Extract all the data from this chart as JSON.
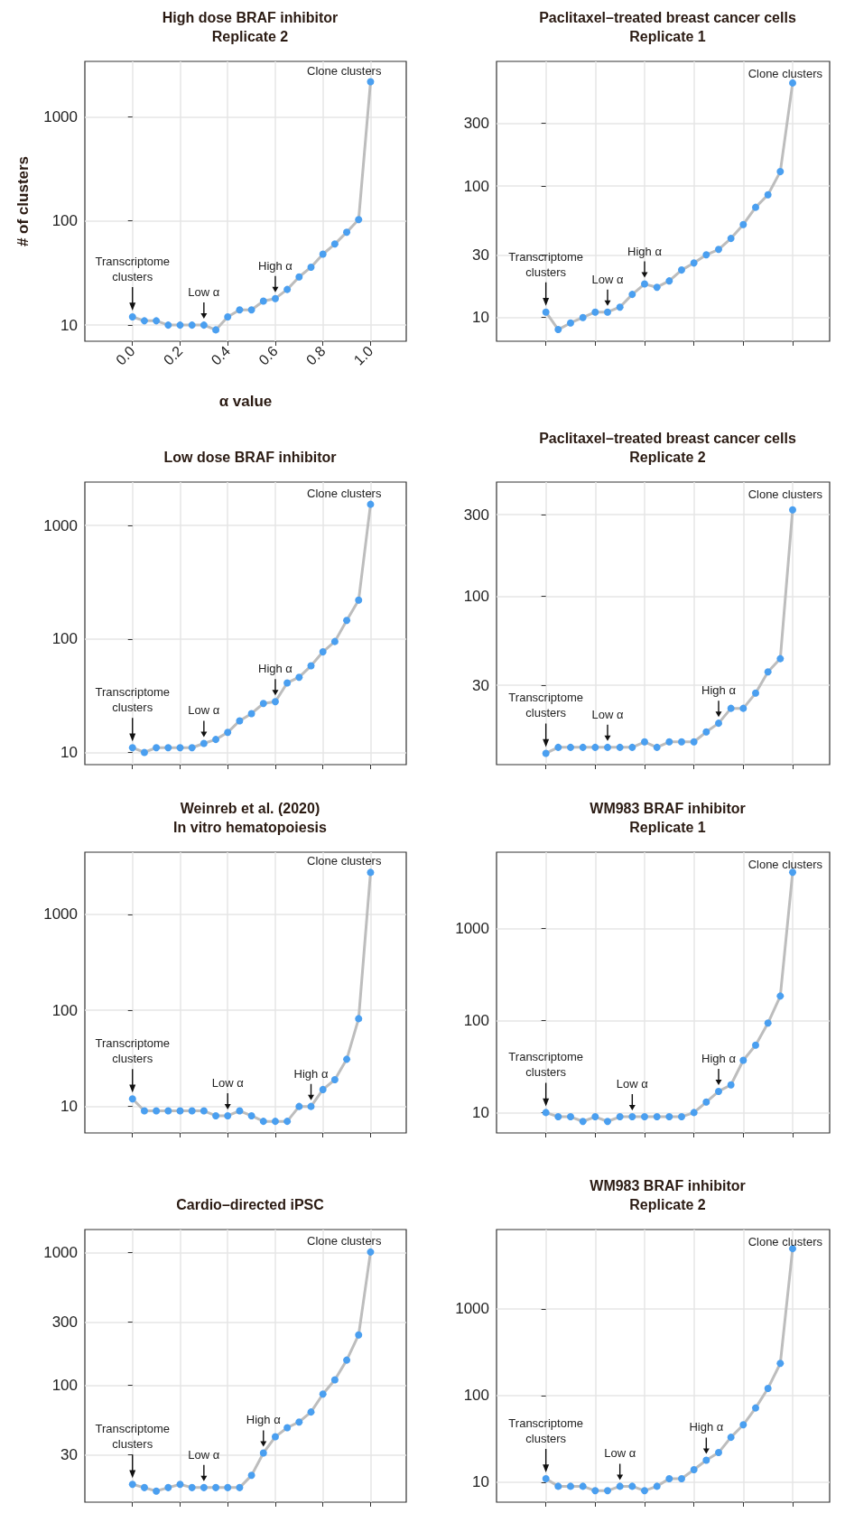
{
  "chart_data": [
    {
      "type": "line",
      "title": "High dose BRAF inhibitor\nReplicate 2",
      "xlabel": "α value",
      "ylabel": "# of clusters",
      "log": "y",
      "grid": true,
      "marker": "circle",
      "xlim": [
        -0.2,
        1.15
      ],
      "xticks": [
        {
          "value": 0,
          "label": "0.0"
        },
        {
          "value": 0.2,
          "label": "0.2"
        },
        {
          "value": 0.4,
          "label": "0.4"
        },
        {
          "value": 0.6,
          "label": "0.6"
        },
        {
          "value": 0.8,
          "label": "0.8"
        },
        {
          "value": 1,
          "label": "1.0"
        }
      ],
      "ylim": [
        7,
        3400
      ],
      "yticks": [
        10,
        100,
        1000
      ],
      "x": [
        0,
        0.05,
        0.1,
        0.15,
        0.2,
        0.25,
        0.3,
        0.35,
        0.4,
        0.45,
        0.5,
        0.55,
        0.6,
        0.65,
        0.7,
        0.75,
        0.8,
        0.85,
        0.9,
        0.95,
        1
      ],
      "series": [
        {
          "color": "#4a9ff0",
          "values": [
            12,
            11,
            11,
            10,
            10,
            10,
            10,
            9,
            12,
            14,
            14,
            17,
            18,
            22,
            29,
            36,
            48,
            60,
            78,
            103,
            2170
          ]
        }
      ],
      "annotations": [
        {
          "text": "Transcriptome\nclusters",
          "x": 0,
          "y": 12
        },
        {
          "text": "Low α",
          "x": 0.3,
          "y": 10
        },
        {
          "text": "High α",
          "x": 0.6,
          "y": 18
        },
        {
          "text": "Clone clusters",
          "x": 1,
          "y": 2170
        }
      ]
    },
    {
      "type": "line",
      "title": "Paclitaxel–treated breast cancer cells\nReplicate 1",
      "log": "y",
      "grid": true,
      "marker": "circle",
      "tick_labels": "y",
      "ylim": [
        6.6,
        890
      ],
      "yticks": [
        10,
        30,
        100,
        300
      ],
      "categories": [
        null,
        null,
        null,
        null,
        null,
        null,
        null,
        null,
        null,
        null,
        null,
        null,
        null,
        null,
        null,
        null,
        null,
        null,
        null,
        null,
        null
      ],
      "series": [
        {
          "color": "#4a9ff0",
          "values": [
            11,
            8.1,
            9.1,
            10,
            11,
            11,
            12,
            15,
            18,
            17,
            19,
            23,
            26,
            30,
            33,
            40,
            51,
            69,
            86,
            129,
            610
          ]
        }
      ],
      "annotations": [
        {
          "text": "Transcriptome\nclusters",
          "y": 11
        },
        {
          "text": "Low α",
          "y": 11
        },
        {
          "text": "High α",
          "y": 18
        },
        "Clone clusters"
      ]
    },
    {
      "type": "line",
      "title": "Low dose BRAF inhibitor",
      "log": "y",
      "grid": true,
      "marker": "circle",
      "tick_labels": "y",
      "xlim": [
        -0.2,
        1.15
      ],
      "xticks": [
        {
          "value": 0,
          "label": null
        },
        {
          "value": 0.2,
          "label": null
        },
        {
          "value": 0.4,
          "label": null
        },
        {
          "value": 0.6,
          "label": null
        },
        {
          "value": 0.8,
          "label": null
        },
        {
          "value": 1,
          "label": null
        }
      ],
      "ylim": [
        7.8,
        2420
      ],
      "yticks": [
        10,
        100,
        1000
      ],
      "x": [
        0,
        0.05,
        0.1,
        0.15,
        0.2,
        0.25,
        0.3,
        0.35,
        0.4,
        0.45,
        0.5,
        0.55,
        0.6,
        0.65,
        0.7,
        0.75,
        0.8,
        0.85,
        0.9,
        0.95,
        1
      ],
      "series": [
        {
          "color": "#4a9ff0",
          "values": [
            11,
            10,
            11,
            11,
            11,
            11,
            12,
            13,
            15,
            19,
            22,
            27,
            28,
            41,
            46,
            58,
            77,
            95,
            146,
            220,
            1540
          ]
        }
      ],
      "annotations": [
        {
          "text": "Transcriptome\nclusters",
          "x": 0,
          "y": 11
        },
        {
          "text": "Low α",
          "x": 0.3,
          "y": 12
        },
        {
          "text": "High α",
          "x": 0.6,
          "y": 28
        },
        {
          "text": "Clone clusters",
          "x": 1,
          "y": 1540
        }
      ]
    },
    {
      "type": "line",
      "title": "Paclitaxel–treated breast cancer cells\nReplicate 2",
      "log": "y",
      "grid": true,
      "marker": "circle",
      "tick_labels": "y",
      "ylim": [
        10.3,
        465
      ],
      "yticks": [
        30,
        100,
        300
      ],
      "categories": [
        null,
        null,
        null,
        null,
        null,
        null,
        null,
        null,
        null,
        null,
        null,
        null,
        null,
        null,
        null,
        null,
        null,
        null,
        null,
        null,
        null
      ],
      "series": [
        {
          "color": "#4a9ff0",
          "values": [
            12,
            13,
            13,
            13,
            13,
            13,
            13,
            13,
            14,
            13,
            14,
            14,
            14,
            16,
            18,
            22,
            22,
            27,
            36,
            43,
            320
          ]
        }
      ],
      "annotations": [
        {
          "text": "Transcriptome\nclusters",
          "y": 12
        },
        {
          "text": "Low α",
          "y": 13
        },
        {
          "text": "High α",
          "y": 18
        },
        "Clone clusters"
      ]
    },
    {
      "type": "line",
      "title": "Weinreb et al. (2020)\nIn vitro hematopoiesis",
      "log": "y",
      "grid": true,
      "marker": "circle",
      "tick_labels": "y",
      "xlim": [
        -0.2,
        1.15
      ],
      "xticks": [
        {
          "value": 0,
          "label": null
        },
        {
          "value": 0.2,
          "label": null
        },
        {
          "value": 0.4,
          "label": null
        },
        {
          "value": 0.6,
          "label": null
        },
        {
          "value": 0.8,
          "label": null
        },
        {
          "value": 1,
          "label": null
        }
      ],
      "ylim": [
        5.3,
        4430
      ],
      "yticks": [
        10,
        100,
        1000
      ],
      "x": [
        0,
        0.05,
        0.1,
        0.15,
        0.2,
        0.25,
        0.3,
        0.35,
        0.4,
        0.45,
        0.5,
        0.55,
        0.6,
        0.65,
        0.7,
        0.75,
        0.8,
        0.85,
        0.9,
        0.95,
        1
      ],
      "series": [
        {
          "color": "#4a9ff0",
          "values": [
            12,
            9,
            9,
            9,
            9,
            9,
            9,
            8,
            8,
            9,
            8,
            7,
            7,
            7,
            10,
            10,
            15,
            19,
            31,
            82,
            2730
          ]
        }
      ],
      "annotations": [
        {
          "text": "Transcriptome\nclusters",
          "x": 0,
          "y": 12
        },
        {
          "text": "Low α",
          "x": 0.4,
          "y": 8
        },
        {
          "text": "High α",
          "x": 0.75,
          "y": 10
        },
        {
          "text": "Clone clusters",
          "x": 1,
          "y": 2730
        }
      ]
    },
    {
      "type": "line",
      "title": "WM983 BRAF inhibitor\nReplicate 1",
      "log": "y",
      "grid": true,
      "marker": "circle",
      "tick_labels": "y",
      "ylim": [
        6,
        6790
      ],
      "yticks": [
        10,
        100,
        1000
      ],
      "categories": [
        null,
        null,
        null,
        null,
        null,
        null,
        null,
        null,
        null,
        null,
        null,
        null,
        null,
        null,
        null,
        null,
        null,
        null,
        null,
        null,
        null
      ],
      "series": [
        {
          "color": "#4a9ff0",
          "values": [
            10,
            9,
            9,
            8,
            9,
            8,
            9,
            9,
            9,
            9,
            9,
            9,
            10,
            13,
            17,
            20,
            37,
            54,
            94,
            185,
            4100
          ]
        }
      ],
      "annotations": [
        {
          "text": "Transcriptome\nclusters",
          "y": 10
        },
        {
          "text": "Low α",
          "y": 9
        },
        {
          "text": "High α",
          "y": 17
        },
        "Clone clusters"
      ]
    },
    {
      "type": "line",
      "title": "Cardio–directed iPSC",
      "log": "y",
      "grid": true,
      "marker": "circle",
      "tick_labels": "y",
      "xlim": [
        -0.2,
        1.15
      ],
      "xticks": [
        {
          "value": 0,
          "label": null
        },
        {
          "value": 0.2,
          "label": null
        },
        {
          "value": 0.4,
          "label": null
        },
        {
          "value": 0.6,
          "label": null
        },
        {
          "value": 0.8,
          "label": null
        },
        {
          "value": 1,
          "label": null
        }
      ],
      "ylim": [
        13.2,
        1490
      ],
      "yticks": [
        30,
        100,
        300,
        1000
      ],
      "x": [
        0,
        0.05,
        0.1,
        0.15,
        0.2,
        0.25,
        0.3,
        0.35,
        0.4,
        0.45,
        0.5,
        0.55,
        0.6,
        0.65,
        0.7,
        0.75,
        0.8,
        0.85,
        0.9,
        0.95,
        1
      ],
      "series": [
        {
          "color": "#4a9ff0",
          "values": [
            18,
            17,
            16,
            17,
            18,
            17,
            17,
            17,
            17,
            17,
            21,
            31,
            41,
            48,
            53,
            63,
            86,
            110,
            155,
            240,
            1010
          ]
        }
      ],
      "annotations": [
        {
          "text": "Transcriptome\nclusters",
          "x": 0,
          "y": 18
        },
        {
          "text": "Low α",
          "x": 0.3,
          "y": 17
        },
        {
          "text": "High α",
          "x": 0.55,
          "y": 31
        },
        {
          "text": "Clone clusters",
          "x": 1,
          "y": 1010
        }
      ]
    },
    {
      "type": "line",
      "title": "WM983 BRAF inhibitor\nReplicate 2",
      "log": "y",
      "grid": true,
      "marker": "circle",
      "tick_labels": "y",
      "ylim": [
        5.9,
        8200
      ],
      "yticks": [
        10,
        100,
        1000
      ],
      "categories": [
        null,
        null,
        null,
        null,
        null,
        null,
        null,
        null,
        null,
        null,
        null,
        null,
        null,
        null,
        null,
        null,
        null,
        null,
        null,
        null,
        null
      ],
      "series": [
        {
          "color": "#4a9ff0",
          "values": [
            11,
            9,
            9,
            9,
            8,
            8,
            9,
            9,
            8,
            9,
            11,
            11,
            14,
            18,
            22,
            33,
            46,
            72,
            121,
            235,
            4940
          ]
        }
      ],
      "annotations": [
        {
          "text": "Transcriptome\nclusters",
          "y": 11
        },
        {
          "text": "Low α",
          "y": 9
        },
        {
          "text": "High α",
          "y": 18
        },
        "Clone clusters"
      ]
    }
  ]
}
